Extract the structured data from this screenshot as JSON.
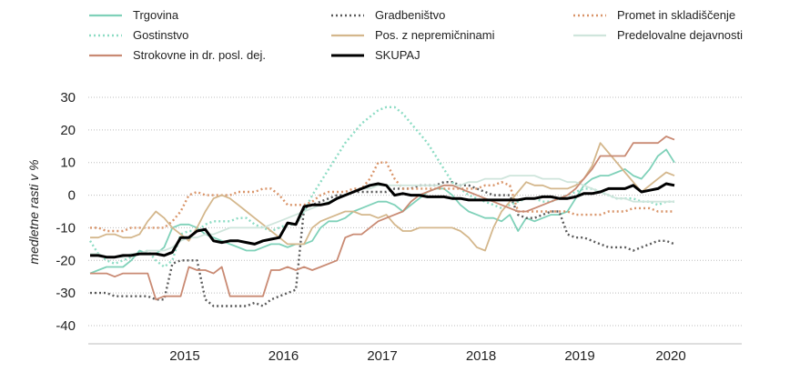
{
  "chart_data": {
    "type": "line",
    "title": "",
    "xlabel": "",
    "ylabel": "medletne rasti v %",
    "ylim": [
      -40,
      30
    ],
    "yticks": [
      30,
      20,
      10,
      0,
      -10,
      -20,
      -30,
      -40
    ],
    "x_start": "2014-07",
    "x_end": "2020-02",
    "year_labels": [
      "2015",
      "2016",
      "2017",
      "2018",
      "2019",
      "2020"
    ],
    "grid": "horizontal-dotted",
    "legend_position": "top",
    "series": [
      {
        "name": "Trgovina",
        "color": "#7fd1b9",
        "dash": "solid",
        "values": [
          -24,
          -23,
          -22,
          -22,
          -22,
          -20,
          -17,
          -18,
          -18,
          -16,
          -10,
          -9,
          -9,
          -10,
          -12,
          -13,
          -14,
          -15,
          -16,
          -17,
          -17,
          -16,
          -15,
          -15,
          -16,
          -15,
          -15,
          -14,
          -10,
          -8,
          -8,
          -7,
          -5,
          -4,
          -3,
          -2,
          -2,
          -3,
          -5,
          -3,
          -1,
          1,
          2,
          2,
          0,
          -3,
          -5,
          -6,
          -7,
          -7,
          -8,
          -6,
          -11,
          -7,
          -8,
          -7,
          -6,
          -6,
          -5,
          -1,
          3,
          5,
          6,
          6,
          7,
          8,
          6,
          5,
          8,
          12,
          14,
          10
        ]
      },
      {
        "name": "Gradbeništvo",
        "color": "#5a5a5a",
        "dash": "dot",
        "values": [
          -30,
          -30,
          -30,
          -31,
          -31,
          -31,
          -31,
          -31,
          -32,
          -32,
          -21,
          -20,
          -20,
          -20,
          -32,
          -34,
          -34,
          -34,
          -34,
          -34,
          -33,
          -34,
          -32,
          -31,
          -30,
          -29,
          -4,
          -3,
          -2,
          -1,
          0,
          0,
          1,
          1,
          1,
          1,
          1,
          2,
          2,
          2,
          3,
          3,
          3,
          4,
          4,
          3,
          3,
          2,
          1,
          0,
          0,
          0,
          -6,
          -7,
          -7,
          -6,
          -5,
          -5,
          -12,
          -13,
          -13,
          -14,
          -15,
          -16,
          -16,
          -16,
          -17,
          -16,
          -15,
          -14,
          -14,
          -15
        ]
      },
      {
        "name": "Promet in skladiščenje",
        "color": "#d9956a",
        "dash": "dot",
        "values": [
          -10,
          -10,
          -11,
          -11,
          -11,
          -10,
          -10,
          -10,
          -10,
          -10,
          -8,
          -5,
          0,
          1,
          0,
          0,
          0,
          0,
          1,
          1,
          1,
          2,
          2,
          0,
          -3,
          -3,
          -3,
          -2,
          0,
          1,
          1,
          1,
          2,
          2,
          5,
          10,
          10,
          5,
          2,
          2,
          2,
          2,
          2,
          2,
          2,
          2,
          2,
          2,
          3,
          3,
          4,
          3,
          -5,
          -5,
          -5,
          -5,
          -5,
          -5,
          -5,
          -6,
          -6,
          -6,
          -6,
          -5,
          -5,
          -5,
          -4,
          -4,
          -4,
          -5,
          -5,
          -5
        ]
      },
      {
        "name": "Gostinstvo",
        "color": "#8ddcc4",
        "dash": "dot",
        "values": [
          -14,
          -18,
          -20,
          -21,
          -20,
          -19,
          -18,
          -17,
          -20,
          -22,
          -20,
          -12,
          -11,
          -11,
          -9,
          -8,
          -8,
          -8,
          -7,
          -7,
          -9,
          -10,
          -11,
          -10,
          -9,
          -9,
          -5,
          0,
          4,
          8,
          12,
          16,
          19,
          22,
          24,
          26,
          27,
          27,
          25,
          22,
          19,
          16,
          12,
          8,
          4,
          2,
          0,
          -1,
          -2,
          -3,
          -4,
          -3,
          -2,
          -1,
          -1,
          -2,
          -2,
          -1,
          0,
          1,
          2,
          2,
          1,
          0,
          -1,
          -1,
          -1,
          -2,
          -2,
          -3,
          -2,
          -2
        ]
      },
      {
        "name": "Pos. z nepremičninami",
        "color": "#d4b78c",
        "dash": "solid",
        "values": [
          -13,
          -13,
          -12,
          -12,
          -13,
          -13,
          -12,
          -8,
          -5,
          -7,
          -10,
          -12,
          -14,
          -10,
          -5,
          -1,
          0,
          -1,
          -3,
          -5,
          -7,
          -9,
          -11,
          -13,
          -15,
          -15,
          -15,
          -10,
          -8,
          -7,
          -6,
          -5,
          -5,
          -6,
          -6,
          -7,
          -6,
          -9,
          -11,
          -11,
          -10,
          -10,
          -10,
          -10,
          -10,
          -11,
          -13,
          -16,
          -17,
          -10,
          -5,
          -2,
          1,
          4,
          3,
          3,
          2,
          2,
          2,
          3,
          5,
          9,
          16,
          13,
          10,
          7,
          4,
          1,
          3,
          5,
          7,
          6
        ]
      },
      {
        "name": "Predelovalne dejavnosti",
        "color": "#cfe5dc",
        "dash": "solid",
        "values": [
          -18,
          -18,
          -19,
          -19,
          -19,
          -18,
          -18,
          -17,
          -17,
          -17,
          -16,
          -14,
          -13,
          -13,
          -12,
          -12,
          -11,
          -10,
          -10,
          -10,
          -10,
          -10,
          -9,
          -8,
          -7,
          -6,
          -5,
          -4,
          -3,
          -2,
          -1,
          0,
          1,
          2,
          2,
          3,
          3,
          3,
          3,
          3,
          3,
          3,
          3,
          3,
          3,
          3,
          4,
          4,
          5,
          5,
          5,
          6,
          6,
          6,
          6,
          5,
          5,
          5,
          4,
          4,
          3,
          2,
          1,
          0,
          -1,
          -1,
          -2,
          -2,
          -2,
          -2,
          -2,
          -2
        ]
      },
      {
        "name": "Strokovne in dr. posl. dej.",
        "color": "#c98a73",
        "dash": "solid",
        "values": [
          -24,
          -24,
          -24,
          -25,
          -24,
          -24,
          -24,
          -24,
          -32,
          -31,
          -31,
          -31,
          -22,
          -23,
          -23,
          -24,
          -22,
          -31,
          -31,
          -31,
          -31,
          -31,
          -23,
          -23,
          -22,
          -23,
          -22,
          -23,
          -22,
          -21,
          -20,
          -13,
          -12,
          -12,
          -10,
          -8,
          -7,
          -6,
          -5,
          -2,
          0,
          1,
          2,
          3,
          3,
          2,
          1,
          0,
          -1,
          -2,
          -3,
          -4,
          -5,
          -5,
          -4,
          -3,
          -2,
          -1,
          0,
          2,
          5,
          8,
          12,
          12,
          12,
          12,
          16,
          16,
          16,
          16,
          18,
          17
        ]
      },
      {
        "name": "SKUPAJ",
        "color": "#000000",
        "dash": "bold",
        "values": [
          -18.5,
          -18.5,
          -19,
          -19,
          -18.5,
          -18.5,
          -18,
          -18,
          -18,
          -18.5,
          -17.5,
          -13,
          -13,
          -11,
          -10.5,
          -14,
          -14.5,
          -14,
          -14,
          -14.5,
          -15,
          -14,
          -13.5,
          -13,
          -8.5,
          -9,
          -3.5,
          -3,
          -3,
          -2.5,
          -1,
          0,
          1,
          2,
          3,
          3.5,
          3,
          0,
          0.5,
          0,
          0,
          -0.5,
          -0.5,
          -0.5,
          -1,
          -1,
          -1.5,
          -1.5,
          -1.5,
          -1.5,
          -1.5,
          -1.5,
          -1.5,
          -1,
          -1,
          -0.5,
          -0.5,
          -1,
          -1,
          -0.5,
          0.5,
          0.5,
          1,
          2,
          2,
          2,
          3,
          1,
          1.5,
          2,
          3.5,
          3
        ]
      }
    ]
  }
}
